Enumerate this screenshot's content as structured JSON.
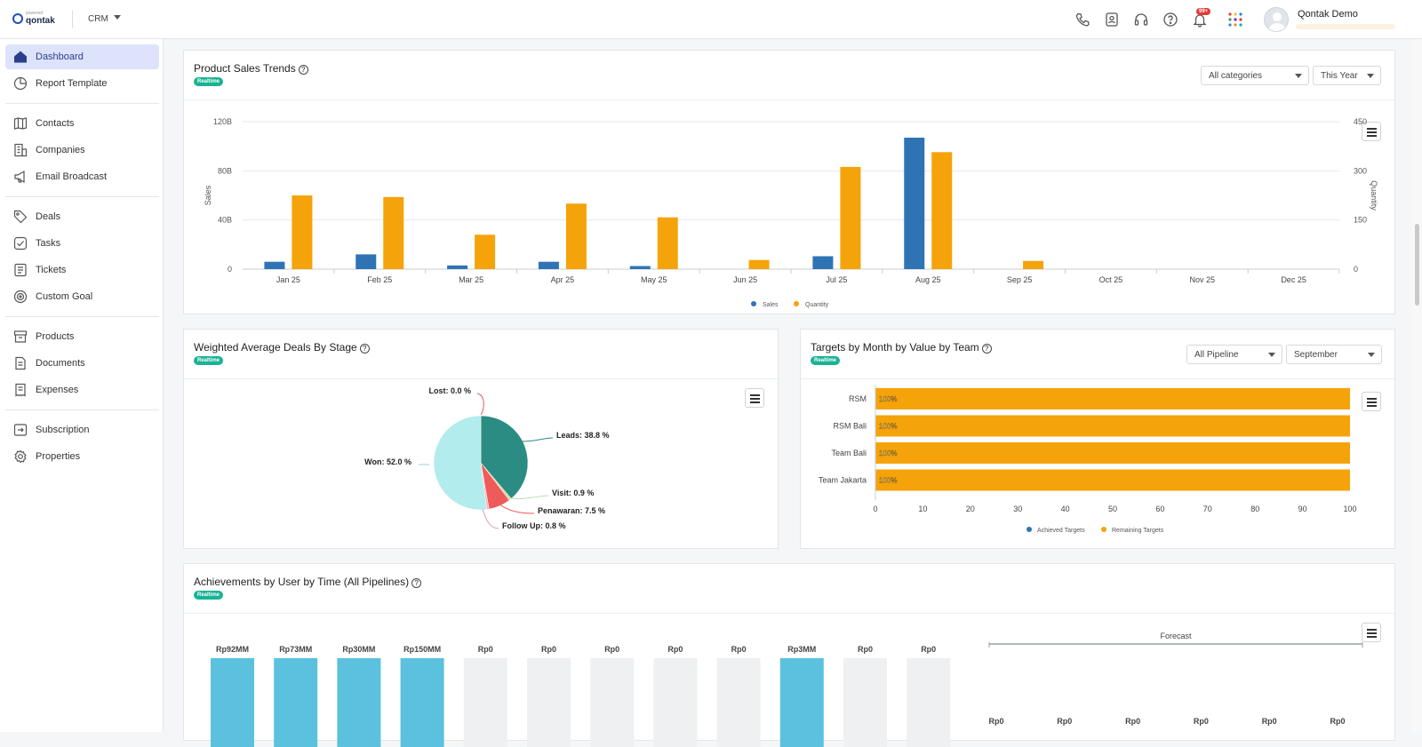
{
  "topbar": {
    "logo_small": "powered",
    "logo_name": "qontak",
    "product_switch": "CRM",
    "notification_count": "99+",
    "user_name": "Qontak Demo",
    "icons": [
      "phone-icon",
      "contact-card-icon",
      "headset-icon",
      "help-icon",
      "bell-icon",
      "apps-grid-icon"
    ]
  },
  "sidebar": {
    "items": [
      {
        "label": "Dashboard",
        "icon": "home-icon",
        "active": true
      },
      {
        "label": "Report Template",
        "icon": "pie-icon"
      },
      {
        "label": "Contacts",
        "icon": "address-book-icon"
      },
      {
        "label": "Companies",
        "icon": "building-icon"
      },
      {
        "label": "Email Broadcast",
        "icon": "megaphone-icon"
      },
      {
        "label": "Deals",
        "icon": "tag-icon"
      },
      {
        "label": "Tasks",
        "icon": "check-circle-icon"
      },
      {
        "label": "Tickets",
        "icon": "ticket-icon"
      },
      {
        "label": "Custom Goal",
        "icon": "target-icon"
      },
      {
        "label": "Products",
        "icon": "box-icon"
      },
      {
        "label": "Documents",
        "icon": "document-icon"
      },
      {
        "label": "Expenses",
        "icon": "receipt-icon"
      },
      {
        "label": "Subscription",
        "icon": "subscription-icon"
      },
      {
        "label": "Properties",
        "icon": "gear-icon"
      }
    ]
  },
  "cards": {
    "product_sales": {
      "title": "Product Sales Trends",
      "badge": "Realtime",
      "filter_category": "All categories",
      "filter_period": "This Year"
    },
    "weighted_deals": {
      "title": "Weighted Average Deals By Stage",
      "badge": "Realtime"
    },
    "targets": {
      "title": "Targets by Month by Value by Team",
      "badge": "Realtime",
      "filter_pipeline": "All Pipeline",
      "filter_month": "September"
    },
    "achievements": {
      "title": "Achievements by User by Time (All Pipelines)",
      "badge": "Realtime"
    }
  },
  "colors": {
    "sales": "#2f73b5",
    "quantity": "#f5a30a",
    "pie_leads": "#2a8c82",
    "pie_won": "#b2ecec",
    "pie_penawaran": "#ef5a5a",
    "pie_visit": "#d9d9a0",
    "pie_followup": "#f2b7c0",
    "achieved": "#2f73b5",
    "remaining": "#f5a30a",
    "achievement_bar": "#5bc1df",
    "achievement_empty": "#eef0f2"
  },
  "chart_data": [
    {
      "type": "bar",
      "categories": [
        "Jan 25",
        "Feb 25",
        "Mar 25",
        "Apr 25",
        "May 25",
        "Jun 25",
        "Jul 25",
        "Aug 25",
        "Sep 25",
        "Oct 25",
        "Nov 25",
        "Dec 25"
      ],
      "series": [
        {
          "name": "Sales",
          "axis": "left",
          "values": [
            6,
            12,
            3,
            6,
            2.5,
            0,
            10.5,
            107,
            0,
            0,
            0,
            0
          ]
        },
        {
          "name": "Quantity",
          "axis": "right",
          "values": [
            225,
            220,
            105,
            200,
            158,
            28,
            312,
            357,
            25,
            0,
            0,
            0
          ]
        }
      ],
      "ylabel": "Sales",
      "y2label": "Quantity",
      "yticks": [
        "0",
        "40B",
        "80B",
        "120B"
      ],
      "ylim": [
        0,
        120
      ],
      "y2ticks": [
        "0",
        "150",
        "300",
        "450"
      ],
      "y2lim": [
        0,
        450
      ],
      "legend": "bottom-center"
    },
    {
      "type": "pie",
      "labels": [
        "Leads",
        "Visit",
        "Penawaran",
        "Follow Up",
        "Won",
        "Lost"
      ],
      "values": [
        38.8,
        0.9,
        7.5,
        0.8,
        52.0,
        0.0
      ],
      "data_labels": [
        "Leads: 38.8 %",
        "Visit: 0.9 %",
        "Penawaran: 7.5 %",
        "Follow Up: 0.8 %",
        "Won: 52.0 %",
        "Lost: 0.0 %"
      ]
    },
    {
      "type": "bar",
      "orientation": "horizontal",
      "stacked": true,
      "categories": [
        "RSM",
        "RSM Bali",
        "Team Bali",
        "Team Jakarta"
      ],
      "series": [
        {
          "name": "Achieved Targets",
          "values": [
            0,
            0,
            0,
            0
          ]
        },
        {
          "name": "Remaining Targets",
          "values": [
            100,
            100,
            100,
            100
          ]
        }
      ],
      "data_labels": [
        "100%",
        "100%",
        "100%",
        "100%"
      ],
      "xticks": [
        "0",
        "10",
        "20",
        "30",
        "40",
        "50",
        "60",
        "70",
        "80",
        "90",
        "100"
      ],
      "xlim": [
        0,
        100
      ],
      "legend": "bottom-center"
    },
    {
      "type": "bar",
      "data_labels": [
        "Rp92MM",
        "Rp73MM",
        "Rp30MM",
        "Rp150MM",
        "Rp0",
        "Rp0",
        "Rp0",
        "Rp0",
        "Rp0",
        "Rp3MM",
        "Rp0",
        "Rp0"
      ],
      "values_millions": [
        92,
        73,
        30,
        150,
        0,
        0,
        0,
        0,
        0,
        3,
        0,
        0
      ]
    },
    {
      "type": "bar",
      "title": "Forecast",
      "data_labels": [
        "Rp0",
        "Rp0",
        "Rp0",
        "Rp0",
        "Rp0",
        "Rp0"
      ],
      "values": [
        0,
        0,
        0,
        0,
        0,
        0
      ]
    }
  ]
}
